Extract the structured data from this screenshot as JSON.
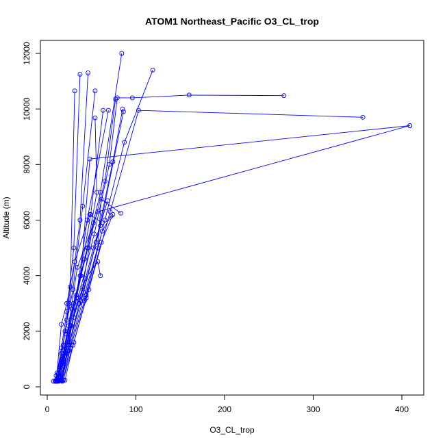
{
  "chart_data": {
    "type": "scatter",
    "title": "ATOM1 Northeast_Pacific O3_CL_trop",
    "xlabel": "O3_CL_trop",
    "ylabel": "Altitude (m)",
    "xlim": [
      0,
      410
    ],
    "ylim": [
      0,
      12000
    ],
    "x_ticks": [
      0,
      100,
      200,
      300,
      400
    ],
    "y_ticks": [
      0,
      2000,
      4000,
      6000,
      8000,
      10000,
      12000
    ],
    "grid": false,
    "legend": "none",
    "series_color": "#0000ff",
    "profiles": [
      {
        "x": [
          7,
          10,
          16,
          22,
          26,
          31
        ],
        "y": [
          200,
          400,
          1200,
          2400,
          3600,
          10650
        ]
      },
      {
        "x": [
          9,
          11,
          16,
          22,
          30,
          37
        ],
        "y": [
          200,
          500,
          1400,
          2700,
          5000,
          11250
        ]
      },
      {
        "x": [
          10,
          12,
          18,
          25,
          37,
          46
        ],
        "y": [
          200,
          450,
          1500,
          3000,
          6000,
          11300
        ]
      },
      {
        "x": [
          12,
          14,
          20,
          29,
          40,
          54
        ],
        "y": [
          220,
          600,
          2000,
          3500,
          6500,
          10650
        ]
      },
      {
        "x": [
          17,
          24,
          33,
          45,
          56,
          54
        ],
        "y": [
          200,
          1500,
          3200,
          5000,
          7000,
          9680
        ]
      },
      {
        "x": [
          13,
          18,
          26,
          37,
          49,
          63
        ],
        "y": [
          200,
          900,
          2200,
          4000,
          6200,
          9950
        ]
      },
      {
        "x": [
          11,
          15,
          22,
          33,
          45,
          69
        ],
        "y": [
          200,
          700,
          1900,
          3300,
          6000,
          9950
        ]
      },
      {
        "x": [
          10,
          17,
          28,
          42,
          60,
          84
        ],
        "y": [
          220,
          1000,
          2800,
          4600,
          7000,
          12000
        ]
      },
      {
        "x": [
          12,
          19,
          30,
          46,
          65,
          77
        ],
        "y": [
          230,
          1200,
          3000,
          5000,
          7400,
          10350
        ]
      },
      {
        "x": [
          14,
          22,
          35,
          53,
          70,
          79,
          96,
          160,
          267
        ],
        "y": [
          240,
          1500,
          3200,
          5500,
          8000,
          10400,
          10400,
          10500,
          10480
        ]
      },
      {
        "x": [
          16,
          25,
          41,
          60,
          86
        ],
        "y": [
          230,
          1600,
          3400,
          5800,
          9900
        ]
      },
      {
        "x": [
          15,
          23,
          38,
          55,
          74,
          85
        ],
        "y": [
          220,
          1300,
          3100,
          5200,
          8100,
          10000
        ]
      },
      {
        "x": [
          18,
          27,
          44,
          65,
          87,
          119
        ],
        "y": [
          250,
          1500,
          3300,
          6000,
          8800,
          11400
        ]
      },
      {
        "x": [
          20,
          30,
          47,
          71,
          103,
          356
        ],
        "y": [
          240,
          1600,
          3500,
          6300,
          9950,
          9700
        ]
      },
      {
        "x": [
          9,
          16,
          23,
          38,
          48,
          409
        ],
        "y": [
          200,
          800,
          2000,
          4000,
          8200,
          9400
        ]
      },
      {
        "x": [
          11,
          17,
          24,
          34,
          57,
          409
        ],
        "y": [
          200,
          900,
          2200,
          4300,
          6300,
          9400
        ]
      },
      {
        "x": [
          10,
          16,
          22,
          31,
          48,
          62
        ],
        "y": [
          200,
          2250,
          3000,
          4500,
          6200,
          5900
        ]
      },
      {
        "x": [
          12,
          18,
          27,
          40,
          52
        ],
        "y": [
          210,
          1000,
          2200,
          3600,
          5900
        ]
      },
      {
        "x": [
          13,
          20,
          30,
          43,
          57,
          60
        ],
        "y": [
          210,
          1100,
          2500,
          3900,
          4500,
          4000
        ]
      },
      {
        "x": [
          16,
          26,
          42,
          57,
          61,
          83
        ],
        "y": [
          220,
          1400,
          3100,
          5000,
          6750,
          6250
        ]
      },
      {
        "x": [
          18,
          29,
          44,
          61,
          74
        ],
        "y": [
          240,
          1500,
          3200,
          5200,
          6200
        ]
      },
      {
        "x": [
          14,
          24,
          41,
          62,
          72
        ],
        "y": [
          220,
          1300,
          3200,
          5600,
          6150
        ]
      },
      {
        "x": [
          15,
          22,
          36,
          52,
          68
        ],
        "y": [
          230,
          1200,
          3000,
          5000,
          6700
        ]
      }
    ]
  }
}
